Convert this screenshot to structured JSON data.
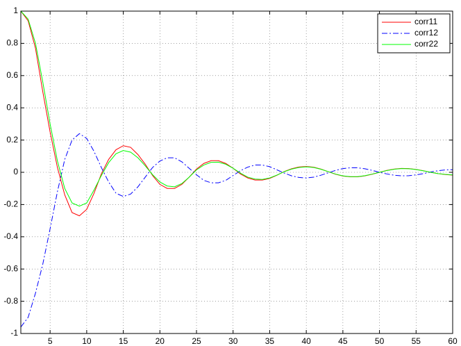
{
  "chart_data": {
    "type": "line",
    "x": [
      1,
      2,
      3,
      4,
      5,
      6,
      7,
      8,
      9,
      10,
      11,
      12,
      13,
      14,
      15,
      16,
      17,
      18,
      19,
      20,
      21,
      22,
      23,
      24,
      25,
      26,
      27,
      28,
      29,
      30,
      31,
      32,
      33,
      34,
      35,
      36,
      37,
      38,
      39,
      40,
      41,
      42,
      43,
      44,
      45,
      46,
      47,
      48,
      49,
      50,
      51,
      52,
      53,
      54,
      55,
      56,
      57,
      58,
      59,
      60
    ],
    "series": [
      {
        "name": "corr11",
        "color": "#ff0000",
        "style": "-",
        "values": [
          1,
          0.94,
          0.77,
          0.5,
          0.25,
          0.03,
          -0.14,
          -0.25,
          -0.27,
          -0.23,
          -0.13,
          -0.01,
          0.08,
          0.14,
          0.165,
          0.155,
          0.11,
          0.05,
          -0.02,
          -0.075,
          -0.1,
          -0.1,
          -0.075,
          -0.03,
          0.02,
          0.055,
          0.072,
          0.072,
          0.055,
          0.025,
          -0.01,
          -0.035,
          -0.048,
          -0.048,
          -0.038,
          -0.018,
          0.005,
          0.022,
          0.033,
          0.036,
          0.032,
          0.02,
          0.004,
          -0.012,
          -0.023,
          -0.028,
          -0.028,
          -0.022,
          -0.012,
          0,
          0.012,
          0.02,
          0.024,
          0.023,
          0.018,
          0.01,
          0,
          -0.008,
          -0.014,
          -0.017
        ]
      },
      {
        "name": "corr12",
        "color": "#0000ff",
        "style": "-.",
        "values": [
          -0.96,
          -0.9,
          -0.75,
          -0.57,
          -0.35,
          -0.12,
          0.08,
          0.2,
          0.24,
          0.21,
          0.13,
          0.03,
          -0.06,
          -0.13,
          -0.15,
          -0.135,
          -0.09,
          -0.03,
          0.03,
          0.07,
          0.09,
          0.09,
          0.065,
          0.025,
          -0.015,
          -0.05,
          -0.065,
          -0.065,
          -0.05,
          -0.02,
          0.01,
          0.032,
          0.045,
          0.045,
          0.035,
          0.015,
          -0.005,
          -0.022,
          -0.032,
          -0.035,
          -0.03,
          -0.018,
          -0.003,
          0.012,
          0.023,
          0.028,
          0.028,
          0.022,
          0.012,
          0,
          -0.01,
          -0.018,
          -0.022,
          -0.021,
          -0.016,
          -0.008,
          0.002,
          0.01,
          0.015,
          0.016
        ]
      },
      {
        "name": "corr22",
        "color": "#00ff00",
        "style": "-",
        "values": [
          1,
          0.95,
          0.8,
          0.56,
          0.3,
          0.07,
          -0.1,
          -0.19,
          -0.21,
          -0.19,
          -0.11,
          -0.02,
          0.06,
          0.115,
          0.135,
          0.125,
          0.09,
          0.04,
          -0.015,
          -0.06,
          -0.085,
          -0.09,
          -0.07,
          -0.03,
          0.015,
          0.045,
          0.062,
          0.063,
          0.05,
          0.025,
          -0.005,
          -0.03,
          -0.042,
          -0.044,
          -0.035,
          -0.017,
          0.004,
          0.02,
          0.03,
          0.034,
          0.03,
          0.019,
          0.004,
          -0.011,
          -0.022,
          -0.027,
          -0.027,
          -0.021,
          -0.011,
          0,
          0.011,
          0.019,
          0.023,
          0.022,
          0.017,
          0.009,
          0,
          -0.008,
          -0.013,
          -0.016
        ]
      }
    ],
    "xlim": [
      1,
      60
    ],
    "xticks": [
      5,
      10,
      15,
      20,
      25,
      30,
      35,
      40,
      45,
      50,
      55,
      60
    ],
    "ylim": [
      -1,
      1
    ],
    "yticks": [
      -1,
      -0.8,
      -0.6,
      -0.4,
      -0.2,
      0,
      0.2,
      0.4,
      0.6,
      0.8,
      1
    ],
    "grid": true,
    "legend": "northeast"
  }
}
